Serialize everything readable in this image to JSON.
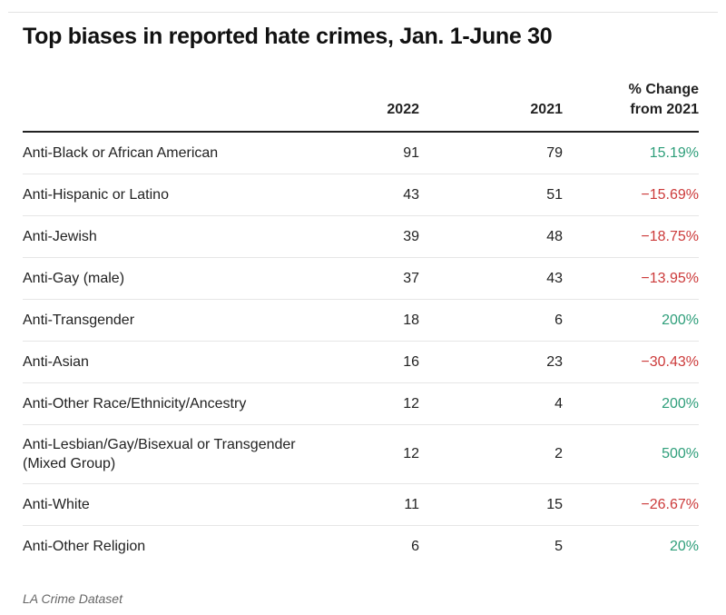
{
  "title": "Top biases in reported hate crimes, Jan. 1-June 30",
  "source": "LA Crime Dataset",
  "colors": {
    "positive": "#2e9e7a",
    "negative": "#cc3a3a"
  },
  "chart_data": {
    "type": "table",
    "title": "Top biases in reported hate crimes, Jan. 1-June 30",
    "columns": [
      "",
      "2022",
      "2021",
      "% Change from 2021"
    ],
    "rows": [
      {
        "bias": "Anti-Black or African American",
        "y2022": "91",
        "y2021": "79",
        "change": "15.19%",
        "sign": "pos"
      },
      {
        "bias": "Anti-Hispanic or Latino",
        "y2022": "43",
        "y2021": "51",
        "change": "−15.69%",
        "sign": "neg"
      },
      {
        "bias": "Anti-Jewish",
        "y2022": "39",
        "y2021": "48",
        "change": "−18.75%",
        "sign": "neg"
      },
      {
        "bias": "Anti-Gay (male)",
        "y2022": "37",
        "y2021": "43",
        "change": "−13.95%",
        "sign": "neg"
      },
      {
        "bias": "Anti-Transgender",
        "y2022": "18",
        "y2021": "6",
        "change": "200%",
        "sign": "pos"
      },
      {
        "bias": "Anti-Asian",
        "y2022": "16",
        "y2021": "23",
        "change": "−30.43%",
        "sign": "neg"
      },
      {
        "bias": "Anti-Other Race/Ethnicity/Ancestry",
        "y2022": "12",
        "y2021": "4",
        "change": "200%",
        "sign": "pos"
      },
      {
        "bias": "Anti-Lesbian/Gay/Bisexual or Transgender (Mixed Group)",
        "y2022": "12",
        "y2021": "2",
        "change": "500%",
        "sign": "pos"
      },
      {
        "bias": "Anti-White",
        "y2022": "11",
        "y2021": "15",
        "change": "−26.67%",
        "sign": "neg"
      },
      {
        "bias": "Anti-Other Religion",
        "y2022": "6",
        "y2021": "5",
        "change": "20%",
        "sign": "pos"
      }
    ]
  },
  "header": {
    "col_2022": "2022",
    "col_2021": "2021",
    "col_change_line1": "% Change",
    "col_change_line2": "from 2021"
  }
}
